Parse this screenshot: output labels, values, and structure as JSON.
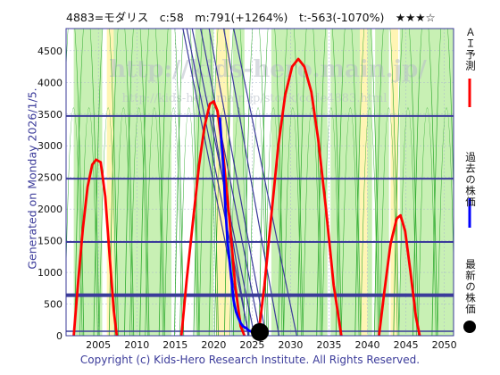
{
  "header": {
    "title": "4883=モダリス　c:58　m:791(+1264%)　t:-563(-1070%)　★★★☆"
  },
  "side_label": "Generated on Monday 2026/1/5.",
  "watermark": {
    "line1": "http://kids-hero.main.jp/",
    "line2": "http://kids-hero.main.jp/stock/code4883.html"
  },
  "copyright": "Copyright (c) Kids-Hero Research Institute. All Rights Reserved.",
  "legend": [
    {
      "label": "ＡＩ予測",
      "color": "#ff0000"
    },
    {
      "label": "過去の株価",
      "color": "#0000ff"
    },
    {
      "label": "最新の株価",
      "color": "#000000"
    }
  ],
  "colors": {
    "frame": "#3b3b9a",
    "green_band": "#c8f0b4",
    "yellow_band": "#fff5b4",
    "thin_green": "#2eaa2e",
    "hline": "#3b3b9a",
    "diag": "#3b3b9a"
  },
  "chart_data": {
    "type": "line",
    "xlim": [
      2000.8,
      2051.2
    ],
    "ylim": [
      0,
      4850
    ],
    "x_ticks": [
      2005,
      2010,
      2015,
      2020,
      2025,
      2030,
      2035,
      2040,
      2045,
      2050
    ],
    "y_ticks": [
      0,
      500,
      1000,
      1500,
      2000,
      2500,
      3000,
      3500,
      4000,
      4500
    ],
    "horizontal_lines": [
      {
        "y": 3470,
        "w": 2
      },
      {
        "y": 2480,
        "w": 2
      },
      {
        "y": 1480,
        "w": 2
      },
      {
        "y": 640,
        "w": 4
      },
      {
        "y": 70,
        "w": 1.5
      }
    ],
    "green_bands": [
      [
        2001.8,
        2005.5
      ],
      [
        2006.4,
        2014.5
      ],
      [
        2017.6,
        2020.0
      ],
      [
        2022.5,
        2024.0
      ],
      [
        2027.5,
        2034.8
      ],
      [
        2035.2,
        2040.6
      ],
      [
        2041.0,
        2042.8
      ],
      [
        2044.2,
        2051.2
      ]
    ],
    "yellow_bands": [
      [
        2006.1,
        2007.0
      ],
      [
        2020.3,
        2022.1
      ],
      [
        2039.0,
        2040.0
      ],
      [
        2043.0,
        2044.0
      ]
    ],
    "diagonal_lines": [
      [
        [
          2016.5,
          4850
        ],
        [
          2024.6,
          0
        ]
      ],
      [
        [
          2017.2,
          4850
        ],
        [
          2025.3,
          0
        ]
      ],
      [
        [
          2018.3,
          4850
        ],
        [
          2026.1,
          0
        ]
      ],
      [
        [
          2019.4,
          4850
        ],
        [
          2026.8,
          0
        ]
      ],
      [
        [
          2019.8,
          3500
        ],
        [
          2024.5,
          0
        ]
      ],
      [
        [
          2021.3,
          4850
        ],
        [
          2028.5,
          0
        ]
      ],
      [
        [
          2022.6,
          4850
        ],
        [
          2030.8,
          0
        ]
      ],
      [
        [
          2016.0,
          4850
        ],
        [
          2023.9,
          0
        ]
      ]
    ],
    "series": [
      {
        "role": "ai-forecast",
        "color": "#ff0000",
        "width": 2.8,
        "segments": [
          [
            [
              2001.8,
              0
            ],
            [
              2002.4,
              900
            ],
            [
              2003.0,
              1700
            ],
            [
              2003.6,
              2350
            ],
            [
              2004.2,
              2700
            ],
            [
              2004.7,
              2780
            ],
            [
              2005.3,
              2740
            ],
            [
              2005.9,
              2200
            ],
            [
              2006.5,
              1200
            ],
            [
              2007.0,
              400
            ],
            [
              2007.4,
              0
            ]
          ],
          [
            [
              2015.8,
              0
            ],
            [
              2016.5,
              900
            ],
            [
              2017.3,
              1800
            ],
            [
              2018.1,
              2700
            ],
            [
              2018.8,
              3300
            ],
            [
              2019.5,
              3660
            ],
            [
              2020.0,
              3700
            ],
            [
              2020.5,
              3550
            ],
            [
              2021.2,
              2900
            ],
            [
              2022.0,
              1900
            ],
            [
              2022.8,
              800
            ],
            [
              2023.5,
              150
            ],
            [
              2024.0,
              0
            ]
          ],
          [
            [
              2025.8,
              0
            ],
            [
              2026.6,
              800
            ],
            [
              2027.5,
              1900
            ],
            [
              2028.4,
              3000
            ],
            [
              2029.3,
              3800
            ],
            [
              2030.2,
              4250
            ],
            [
              2031.0,
              4370
            ],
            [
              2031.8,
              4250
            ],
            [
              2032.7,
              3850
            ],
            [
              2033.6,
              3100
            ],
            [
              2034.6,
              2000
            ],
            [
              2035.6,
              800
            ],
            [
              2036.6,
              0
            ]
          ],
          [
            [
              2041.5,
              0
            ],
            [
              2042.2,
              700
            ],
            [
              2043.0,
              1450
            ],
            [
              2043.8,
              1850
            ],
            [
              2044.3,
              1900
            ],
            [
              2044.9,
              1650
            ],
            [
              2045.6,
              1000
            ],
            [
              2046.3,
              300
            ],
            [
              2046.8,
              0
            ]
          ]
        ]
      },
      {
        "role": "past-price",
        "color": "#0000ff",
        "width": 2.8,
        "segments": [
          [
            [
              2020.8,
              3450
            ],
            [
              2021.0,
              3100
            ],
            [
              2021.3,
              2600
            ],
            [
              2021.5,
              2050
            ],
            [
              2021.8,
              1500
            ],
            [
              2022.0,
              1250
            ],
            [
              2022.3,
              900
            ],
            [
              2022.6,
              550
            ],
            [
              2022.9,
              380
            ],
            [
              2023.2,
              280
            ],
            [
              2023.5,
              200
            ],
            [
              2023.8,
              150
            ],
            [
              2024.2,
              120
            ],
            [
              2024.6,
              80
            ],
            [
              2025.0,
              60
            ]
          ]
        ]
      }
    ],
    "latest_price": {
      "x": 2026.0,
      "y": 58
    },
    "thin_green_peaks": [
      2001.5,
      2003.5,
      2006.0,
      2008.0,
      2010.0,
      2012.0,
      2014.5,
      2016.5,
      2019.0,
      2021.0,
      2023.0,
      2025.5,
      2027.5,
      2030.0,
      2032.5,
      2035.0,
      2037.5,
      2040.0,
      2042.5,
      2045.0,
      2047.5,
      2050.0
    ]
  }
}
